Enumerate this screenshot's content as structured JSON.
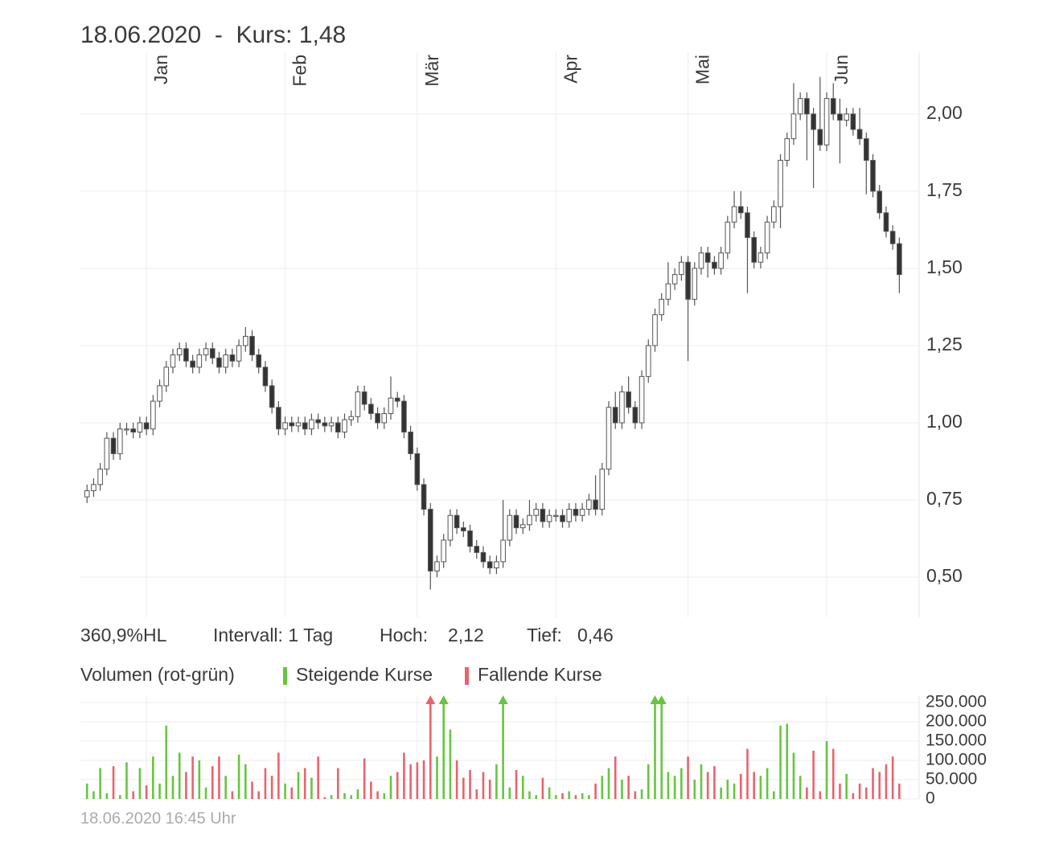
{
  "header": {
    "title": "18.06.2020  -  Kurs: 1,48"
  },
  "stats": {
    "range": "360,9%HL",
    "interval": "Intervall: 1 Tag",
    "high_label": "Hoch:",
    "high": "2,12",
    "low_label": "Tief:",
    "low": "0,46"
  },
  "footer": {
    "timestamp": "18.06.2020 16:45 Uhr"
  },
  "chart_data": [
    {
      "type": "candlestick",
      "xlim": [
        -1,
        126
      ],
      "xticks": [
        {
          "value": 9,
          "label": "Jan"
        },
        {
          "value": 30,
          "label": "Feb"
        },
        {
          "value": 50,
          "label": "Mär"
        },
        {
          "value": 71,
          "label": "Apr"
        },
        {
          "value": 91,
          "label": "Mai"
        },
        {
          "value": 112,
          "label": "Jun"
        }
      ],
      "ylim": [
        0.37,
        2.2
      ],
      "yticks": [
        {
          "value": 0.5,
          "label": "0,50"
        },
        {
          "value": 0.75,
          "label": "0,75"
        },
        {
          "value": 1.0,
          "label": "1,00"
        },
        {
          "value": 1.25,
          "label": "1,25"
        },
        {
          "value": 1.5,
          "label": "1,50"
        },
        {
          "value": 1.75,
          "label": "1,75"
        },
        {
          "value": 2.0,
          "label": "2,00"
        }
      ],
      "grid": true,
      "up_color": "#ffffff",
      "down_color": "#333333",
      "open": [
        0.76,
        0.78,
        0.8,
        0.85,
        0.95,
        0.9,
        0.98,
        0.98,
        0.97,
        1.0,
        0.98,
        1.07,
        1.12,
        1.18,
        1.22,
        1.24,
        1.2,
        1.18,
        1.22,
        1.24,
        1.21,
        1.18,
        1.22,
        1.2,
        1.25,
        1.28,
        1.22,
        1.18,
        1.12,
        1.05,
        0.98,
        1.0,
        0.99,
        1.0,
        0.98,
        1.01,
        1.0,
        0.99,
        1.0,
        0.97,
        1.01,
        1.02,
        1.1,
        1.06,
        1.03,
        1.0,
        1.03,
        1.08,
        1.07,
        0.97,
        0.9,
        0.8,
        0.72,
        0.52,
        0.55,
        0.62,
        0.7,
        0.66,
        0.65,
        0.6,
        0.58,
        0.55,
        0.53,
        0.55,
        0.62,
        0.7,
        0.66,
        0.67,
        0.7,
        0.72,
        0.68,
        0.7,
        0.7,
        0.68,
        0.72,
        0.7,
        0.72,
        0.75,
        0.72,
        0.85,
        1.05,
        1.0,
        1.1,
        1.05,
        1.0,
        1.15,
        1.25,
        1.35,
        1.4,
        1.45,
        1.48,
        1.52,
        1.4,
        1.5,
        1.55,
        1.52,
        1.5,
        1.55,
        1.65,
        1.7,
        1.68,
        1.6,
        1.52,
        1.55,
        1.65,
        1.7,
        1.85,
        1.92,
        2.0,
        2.05,
        2.0,
        1.95,
        1.9,
        2.05,
        2.0,
        1.98,
        2.0,
        1.95,
        1.92,
        1.85,
        1.75,
        1.68,
        1.62,
        1.58
      ],
      "high": [
        0.8,
        0.82,
        0.87,
        0.97,
        0.97,
        1.0,
        1.0,
        1.0,
        1.02,
        1.02,
        1.09,
        1.14,
        1.2,
        1.24,
        1.26,
        1.26,
        1.22,
        1.24,
        1.26,
        1.26,
        1.23,
        1.24,
        1.24,
        1.27,
        1.31,
        1.3,
        1.24,
        1.2,
        1.14,
        1.07,
        1.02,
        1.02,
        1.02,
        1.02,
        1.03,
        1.03,
        1.02,
        1.02,
        1.02,
        1.03,
        1.04,
        1.12,
        1.12,
        1.08,
        1.05,
        1.05,
        1.15,
        1.1,
        1.09,
        0.99,
        0.92,
        0.82,
        0.74,
        0.57,
        0.64,
        0.72,
        0.72,
        0.68,
        0.67,
        0.62,
        0.6,
        0.57,
        0.57,
        0.75,
        0.72,
        0.72,
        0.69,
        0.75,
        0.74,
        0.74,
        0.72,
        0.72,
        0.72,
        0.74,
        0.74,
        0.74,
        0.77,
        0.83,
        0.87,
        1.07,
        1.1,
        1.12,
        1.15,
        1.07,
        1.17,
        1.27,
        1.37,
        1.42,
        1.52,
        1.5,
        1.54,
        1.54,
        1.52,
        1.57,
        1.57,
        1.54,
        1.57,
        1.67,
        1.75,
        1.75,
        1.7,
        1.62,
        1.57,
        1.67,
        1.72,
        1.87,
        1.94,
        2.1,
        2.07,
        2.07,
        2.02,
        2.12,
        2.07,
        2.1,
        2.05,
        2.02,
        2.02,
        2.02,
        1.94,
        1.87,
        1.77,
        1.7,
        1.64,
        1.6
      ],
      "low": [
        0.74,
        0.76,
        0.78,
        0.83,
        0.88,
        0.88,
        0.96,
        0.95,
        0.95,
        0.96,
        0.96,
        1.05,
        1.1,
        1.16,
        1.2,
        1.18,
        1.16,
        1.16,
        1.2,
        1.19,
        1.16,
        1.16,
        1.18,
        1.18,
        1.23,
        1.2,
        1.16,
        1.1,
        1.03,
        0.96,
        0.96,
        0.97,
        0.97,
        0.96,
        0.96,
        0.98,
        0.97,
        0.97,
        0.95,
        0.95,
        0.99,
        1.0,
        1.04,
        1.01,
        0.98,
        0.98,
        1.01,
        1.05,
        0.95,
        0.88,
        0.78,
        0.7,
        0.46,
        0.5,
        0.53,
        0.6,
        0.64,
        0.63,
        0.58,
        0.56,
        0.53,
        0.51,
        0.51,
        0.53,
        0.6,
        0.64,
        0.64,
        0.65,
        0.68,
        0.66,
        0.66,
        0.68,
        0.66,
        0.66,
        0.68,
        0.68,
        0.7,
        0.7,
        0.7,
        0.83,
        0.98,
        0.98,
        1.03,
        0.98,
        0.98,
        1.13,
        1.23,
        1.33,
        1.38,
        1.43,
        1.46,
        1.2,
        1.38,
        1.48,
        1.47,
        1.48,
        1.48,
        1.53,
        1.63,
        1.66,
        1.42,
        1.5,
        1.5,
        1.53,
        1.63,
        1.63,
        1.83,
        1.9,
        1.98,
        1.85,
        1.76,
        1.88,
        1.88,
        1.98,
        1.84,
        1.96,
        1.93,
        1.9,
        1.74,
        1.73,
        1.66,
        1.6,
        1.56,
        1.42
      ],
      "close": [
        0.78,
        0.8,
        0.85,
        0.95,
        0.9,
        0.98,
        0.98,
        0.97,
        1.0,
        0.98,
        1.07,
        1.12,
        1.18,
        1.22,
        1.24,
        1.2,
        1.18,
        1.22,
        1.24,
        1.21,
        1.18,
        1.22,
        1.2,
        1.25,
        1.28,
        1.22,
        1.18,
        1.12,
        1.05,
        0.98,
        1.0,
        0.99,
        1.0,
        0.98,
        1.01,
        1.0,
        0.99,
        1.0,
        0.97,
        1.01,
        1.02,
        1.1,
        1.06,
        1.03,
        1.0,
        1.03,
        1.08,
        1.07,
        0.97,
        0.9,
        0.8,
        0.72,
        0.52,
        0.55,
        0.62,
        0.7,
        0.66,
        0.65,
        0.6,
        0.58,
        0.55,
        0.53,
        0.55,
        0.62,
        0.7,
        0.66,
        0.67,
        0.7,
        0.72,
        0.68,
        0.7,
        0.7,
        0.68,
        0.72,
        0.7,
        0.72,
        0.75,
        0.72,
        0.85,
        1.05,
        1.0,
        1.1,
        1.05,
        1.0,
        1.15,
        1.25,
        1.35,
        1.4,
        1.45,
        1.48,
        1.52,
        1.4,
        1.5,
        1.55,
        1.52,
        1.5,
        1.55,
        1.65,
        1.7,
        1.68,
        1.6,
        1.52,
        1.55,
        1.65,
        1.7,
        1.85,
        1.92,
        2.0,
        2.05,
        2.0,
        1.95,
        1.9,
        2.05,
        2.0,
        1.98,
        2.0,
        1.95,
        1.92,
        1.85,
        1.75,
        1.68,
        1.62,
        1.58,
        1.48
      ]
    },
    {
      "type": "volume",
      "title": "Volumen (rot-grün)",
      "legend": [
        {
          "name": "Steigende Kurse",
          "color": "#66c63f"
        },
        {
          "name": "Fallende Kurse",
          "color": "#e8636d"
        }
      ],
      "ylim": [
        0,
        250000
      ],
      "yticks": [
        0,
        {
          "value": 50000,
          "label": "50.000"
        },
        {
          "value": 100000,
          "label": "100.000"
        },
        {
          "value": 150000,
          "label": "150.000"
        },
        {
          "value": 200000,
          "label": "200.000"
        },
        {
          "value": 250000,
          "label": "250.000"
        }
      ],
      "grid": true,
      "values": [
        40000,
        20000,
        80000,
        15000,
        85000,
        10000,
        95000,
        20000,
        80000,
        35000,
        110000,
        40000,
        190000,
        60000,
        120000,
        70000,
        110000,
        100000,
        30000,
        85000,
        110000,
        60000,
        20000,
        115000,
        90000,
        45000,
        20000,
        80000,
        60000,
        120000,
        40000,
        30000,
        70000,
        80000,
        55000,
        110000,
        5000,
        10000,
        80000,
        15000,
        10000,
        25000,
        105000,
        45000,
        20000,
        15000,
        60000,
        70000,
        120000,
        90000,
        95000,
        100000,
        300000,
        110000,
        280000,
        180000,
        100000,
        55000,
        75000,
        25000,
        70000,
        50000,
        90000,
        260000,
        30000,
        75000,
        60000,
        20000,
        10000,
        55000,
        30000,
        10000,
        15000,
        20000,
        10000,
        15000,
        10000,
        40000,
        60000,
        80000,
        110000,
        50000,
        60000,
        20000,
        25000,
        90000,
        300000,
        300000,
        70000,
        60000,
        80000,
        110000,
        50000,
        90000,
        70000,
        85000,
        30000,
        50000,
        40000,
        65000,
        130000,
        70000,
        60000,
        80000,
        20000,
        190000,
        195000,
        120000,
        60000,
        30000,
        125000,
        20000,
        150000,
        130000,
        40000,
        65000,
        15000,
        40000,
        30000,
        80000,
        70000,
        90000,
        110000,
        40000
      ]
    }
  ]
}
